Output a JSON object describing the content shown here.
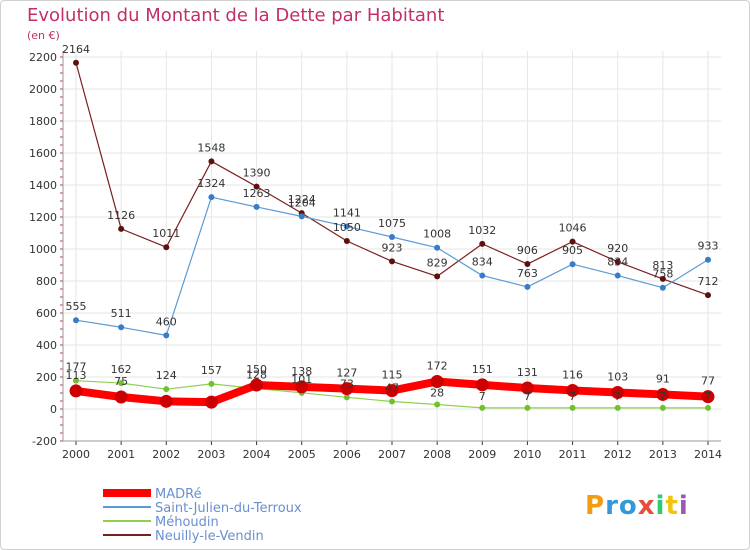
{
  "title": "Evolution du Montant de la Dette par Habitant",
  "subtitle": "(en €)",
  "logo": "Proxiti",
  "chart_data": {
    "type": "line",
    "title": "Evolution du Montant de la Dette par Habitant",
    "ylabel": "(en €)",
    "x": [
      "2000",
      "2001",
      "2002",
      "2003",
      "2004",
      "2005",
      "2006",
      "2007",
      "2008",
      "2009",
      "2010",
      "2011",
      "2012",
      "2013",
      "2014"
    ],
    "ylim": [
      -200,
      2200
    ],
    "yticks": [
      "-200",
      "0",
      "200",
      "400",
      "600",
      "800",
      "1000",
      "1200",
      "1400",
      "1600",
      "1800",
      "2000",
      "2200"
    ],
    "grid": true,
    "legend": "bottom-left",
    "series": [
      {
        "name": "MADRé",
        "color": "#ff0000",
        "values": [
          113,
          75,
          48,
          43,
          150,
          138,
          127,
          115,
          172,
          151,
          131,
          116,
          103,
          91,
          77
        ]
      },
      {
        "name": "Saint-Julien-du-Terroux",
        "color": "#5b9bd5",
        "values": [
          555,
          511,
          460,
          1324,
          1263,
          1204,
          1141,
          1075,
          1008,
          834,
          763,
          905,
          834,
          758,
          933
        ]
      },
      {
        "name": "Méhoudin",
        "color": "#8fd14f",
        "values": [
          177,
          162,
          124,
          157,
          128,
          101,
          73,
          47,
          28,
          7,
          7,
          7,
          7,
          7,
          7
        ]
      },
      {
        "name": "Neuilly-le-Vendin",
        "color": "#7a1f1f",
        "values": [
          2164,
          1126,
          1011,
          1548,
          1390,
          1224,
          1050,
          923,
          829,
          1032,
          906,
          1046,
          920,
          813,
          712
        ]
      }
    ],
    "data_labels": [
      {
        "series": 0,
        "values": [
          "113",
          "75",
          "",
          "",
          "150",
          "138",
          "127",
          "115",
          "172",
          "151",
          "131",
          "116",
          "103",
          "91",
          "77"
        ]
      },
      {
        "series": 1,
        "values": [
          "555",
          "511",
          "460",
          "1324",
          "1263",
          "1204",
          "1141",
          "1075",
          "1008",
          "834",
          "763",
          "905",
          "834",
          "758",
          "933"
        ]
      },
      {
        "series": 2,
        "values": [
          "177",
          "162",
          "124",
          "157",
          "128",
          "101",
          "73",
          "47",
          "28",
          "7",
          "7",
          "7",
          "7",
          "7",
          "7"
        ]
      },
      {
        "series": 3,
        "values": [
          "2164",
          "1126",
          "1011",
          "1548",
          "1390",
          "1224",
          "1050",
          "923",
          "829",
          "1032",
          "906",
          "1046",
          "920",
          "813",
          "712"
        ]
      }
    ]
  }
}
